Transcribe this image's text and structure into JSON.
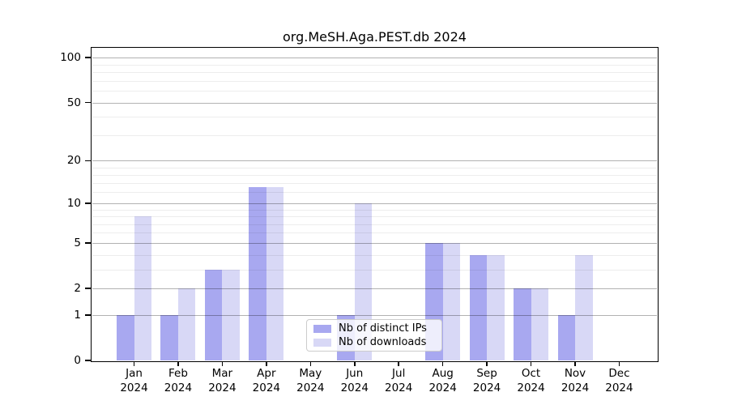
{
  "title": "org.MeSH.Aga.PEST.db 2024",
  "chart_data": {
    "type": "bar",
    "title": "org.MeSH.Aga.PEST.db 2024",
    "categories": [
      "Jan 2024",
      "Feb 2024",
      "Mar 2024",
      "Apr 2024",
      "May 2024",
      "Jun 2024",
      "Jul 2024",
      "Aug 2024",
      "Sep 2024",
      "Oct 2024",
      "Nov 2024",
      "Dec 2024"
    ],
    "series": [
      {
        "name": "Nb of distinct IPs",
        "color": "#a8a8f0",
        "values": [
          1,
          1,
          3,
          13,
          0,
          1,
          0,
          5,
          4,
          2,
          1,
          0
        ]
      },
      {
        "name": "Nb of downloads",
        "color": "#d8d8f6",
        "values": [
          8,
          2,
          3,
          13,
          0,
          10,
          0,
          5,
          4,
          2,
          4,
          0
        ]
      }
    ],
    "xlabel": "",
    "ylabel": "",
    "y_axis": {
      "scale": "log10(1+x)",
      "ticks": [
        0,
        1,
        2,
        5,
        10,
        20,
        50,
        100
      ],
      "minor_gridlines": [
        3,
        4,
        6,
        7,
        8,
        9,
        12,
        14,
        16,
        18,
        30,
        40,
        60,
        70,
        80,
        90
      ],
      "ylim": [
        0,
        115
      ]
    },
    "grid": true,
    "legend_position": "bottom-center",
    "colors": {
      "background": "#ffffff",
      "major_gridline": "#b3b3b3",
      "minor_gridline": "#ececec",
      "axis": "#000000"
    }
  }
}
